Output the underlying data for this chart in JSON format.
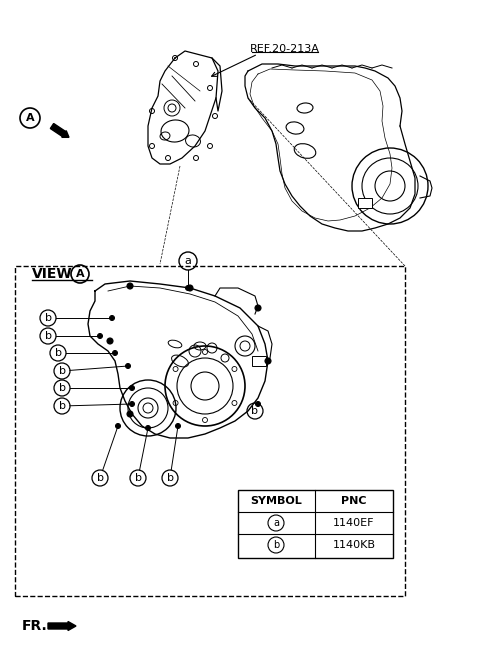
{
  "bg_color": "#ffffff",
  "line_color": "#000000",
  "ref_label": "REF.20-213A",
  "view_label": "VIEW",
  "fr_label": "FR.",
  "symbol_header": [
    "SYMBOL",
    "PNC"
  ],
  "symbol_rows": [
    [
      "a",
      "1140EF"
    ],
    [
      "b",
      "1140KB"
    ]
  ],
  "fig_width": 4.8,
  "fig_height": 6.56,
  "dpi": 100
}
